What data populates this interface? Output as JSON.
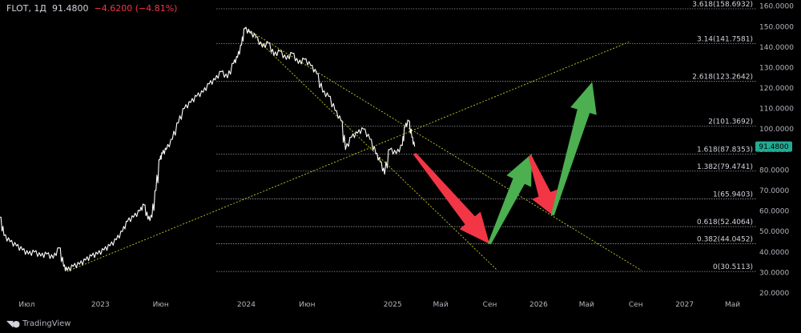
{
  "header": {
    "symbol": "FLOT, 1Д",
    "price": "91.4800",
    "change": "−4.6200 (−4.81%)"
  },
  "watermark": {
    "text": "TradingView",
    "logo_icon": "tradingview-logo-icon"
  },
  "current_price_label": "91.4800",
  "colors": {
    "background": "#000000",
    "price_line": "#ffffff",
    "trend_line": "#c8c82a",
    "fib_line": "#9598a1",
    "current_price_tag": "#22ab94",
    "arrow_up": "#4caf50",
    "arrow_down": "#f23645"
  },
  "chart_data": {
    "type": "line",
    "title": "",
    "ylim": [
      20,
      163
    ],
    "y_ticks": [
      "20.0000",
      "30.0000",
      "40.0000",
      "50.0000",
      "60.0000",
      "70.0000",
      "80.0000",
      "90.0000",
      "100.0000",
      "110.0000",
      "120.0000",
      "130.0000",
      "140.0000",
      "150.0000",
      "160.0000"
    ],
    "x_ticks": [
      {
        "label": "Июл",
        "date": "2022-07-01"
      },
      {
        "label": "2023",
        "date": "2023-01-01"
      },
      {
        "label": "Июн",
        "date": "2023-06-01"
      },
      {
        "label": "2024",
        "date": "2024-01-01"
      },
      {
        "label": "Июн",
        "date": "2024-06-01"
      },
      {
        "label": "2025",
        "date": "2025-01-01"
      },
      {
        "label": "Май",
        "date": "2025-05-01"
      },
      {
        "label": "Сен",
        "date": "2025-09-01"
      },
      {
        "label": "2026",
        "date": "2026-01-01"
      },
      {
        "label": "Май",
        "date": "2026-05-01"
      },
      {
        "label": "Сен",
        "date": "2026-09-01"
      },
      {
        "label": "2027",
        "date": "2027-01-01"
      },
      {
        "label": "Май",
        "date": "2027-05-01"
      }
    ],
    "xlim": [
      "2022-04-25",
      "2027-07-01"
    ],
    "fib_levels": [
      {
        "label": "3.618(158.6932)",
        "value": 158.6932
      },
      {
        "label": "3.14(141.7581)",
        "value": 141.7581
      },
      {
        "label": "2.618(123.2642)",
        "value": 123.2642
      },
      {
        "label": "2(101.3692)",
        "value": 101.3692
      },
      {
        "label": "1.618(87.8353)",
        "value": 87.8353
      },
      {
        "label": "1.382(79.4741)",
        "value": 79.4741
      },
      {
        "label": "1(65.9403)",
        "value": 65.9403
      },
      {
        "label": "0.618(52.4064)",
        "value": 52.4064
      },
      {
        "label": "0.382(44.0452)",
        "value": 44.0452
      },
      {
        "label": "0(30.5113)",
        "value": 30.5113
      }
    ],
    "series": [
      {
        "values": [
          [
            "2022-04-25",
            57
          ],
          [
            "2022-05-05",
            48
          ],
          [
            "2022-05-20",
            45
          ],
          [
            "2022-06-05",
            43
          ],
          [
            "2022-06-20",
            41
          ],
          [
            "2022-07-05",
            39
          ],
          [
            "2022-07-20",
            40
          ],
          [
            "2022-08-05",
            38
          ],
          [
            "2022-08-20",
            39
          ],
          [
            "2022-09-05",
            37
          ],
          [
            "2022-09-20",
            42
          ],
          [
            "2022-10-01",
            33
          ],
          [
            "2022-10-10",
            31
          ],
          [
            "2022-10-25",
            33
          ],
          [
            "2022-11-10",
            34
          ],
          [
            "2022-11-25",
            36
          ],
          [
            "2022-12-10",
            38
          ],
          [
            "2022-12-25",
            39
          ],
          [
            "2023-01-10",
            41
          ],
          [
            "2023-01-25",
            43
          ],
          [
            "2023-02-10",
            46
          ],
          [
            "2023-02-25",
            50
          ],
          [
            "2023-03-10",
            55
          ],
          [
            "2023-03-25",
            57
          ],
          [
            "2023-04-10",
            60
          ],
          [
            "2023-04-20",
            63
          ],
          [
            "2023-04-30",
            56
          ],
          [
            "2023-05-10",
            57
          ],
          [
            "2023-05-20",
            70
          ],
          [
            "2023-05-30",
            85
          ],
          [
            "2023-06-05",
            88
          ],
          [
            "2023-06-15",
            90
          ],
          [
            "2023-06-30",
            95
          ],
          [
            "2023-07-15",
            103
          ],
          [
            "2023-07-30",
            110
          ],
          [
            "2023-08-15",
            113
          ],
          [
            "2023-08-30",
            116
          ],
          [
            "2023-09-15",
            118
          ],
          [
            "2023-09-30",
            122
          ],
          [
            "2023-10-15",
            124
          ],
          [
            "2023-10-30",
            128
          ],
          [
            "2023-11-15",
            125
          ],
          [
            "2023-11-30",
            132
          ],
          [
            "2023-12-10",
            135
          ],
          [
            "2023-12-20",
            141
          ],
          [
            "2023-12-28",
            149
          ],
          [
            "2024-01-10",
            147
          ],
          [
            "2024-01-25",
            145
          ],
          [
            "2024-02-10",
            140
          ],
          [
            "2024-02-25",
            142
          ],
          [
            "2024-03-10",
            136
          ],
          [
            "2024-03-25",
            138
          ],
          [
            "2024-04-10",
            134
          ],
          [
            "2024-04-25",
            137
          ],
          [
            "2024-05-10",
            132
          ],
          [
            "2024-05-25",
            134
          ],
          [
            "2024-06-10",
            131
          ],
          [
            "2024-06-25",
            127
          ],
          [
            "2024-07-10",
            118
          ],
          [
            "2024-07-25",
            116
          ],
          [
            "2024-08-10",
            109
          ],
          [
            "2024-08-25",
            104
          ],
          [
            "2024-09-05",
            90
          ],
          [
            "2024-09-20",
            96
          ],
          [
            "2024-10-05",
            98
          ],
          [
            "2024-10-20",
            100
          ],
          [
            "2024-11-05",
            95
          ],
          [
            "2024-11-20",
            88
          ],
          [
            "2024-12-01",
            84
          ],
          [
            "2024-12-12",
            78
          ],
          [
            "2024-12-25",
            90
          ],
          [
            "2025-01-10",
            88
          ],
          [
            "2025-01-25",
            92
          ],
          [
            "2025-02-01",
            101
          ],
          [
            "2025-02-10",
            104
          ],
          [
            "2025-02-18",
            96
          ],
          [
            "2025-02-25",
            91.48
          ]
        ]
      }
    ],
    "trend_lines": [
      {
        "from": [
          "2022-10-10",
          30.5
        ],
        "to": [
          "2026-08-15",
          142.5
        ]
      },
      {
        "from": [
          "2023-12-28",
          149.5
        ],
        "to": [
          "2026-09-15",
          31
        ]
      },
      {
        "from": [
          "2024-01-05",
          148
        ],
        "to": [
          "2025-09-20",
          31
        ]
      }
    ],
    "arrows": [
      {
        "direction": "down",
        "from": [
          "2025-02-25",
          88
        ],
        "to": [
          "2025-08-31",
          44
        ]
      },
      {
        "direction": "up",
        "from": [
          "2025-08-31",
          44
        ],
        "to": [
          "2025-12-15",
          88
        ]
      },
      {
        "direction": "down",
        "from": [
          "2025-12-10",
          87
        ],
        "to": [
          "2026-02-05",
          58
        ]
      },
      {
        "direction": "up",
        "from": [
          "2026-02-05",
          58
        ],
        "to": [
          "2026-05-15",
          123
        ]
      }
    ]
  }
}
